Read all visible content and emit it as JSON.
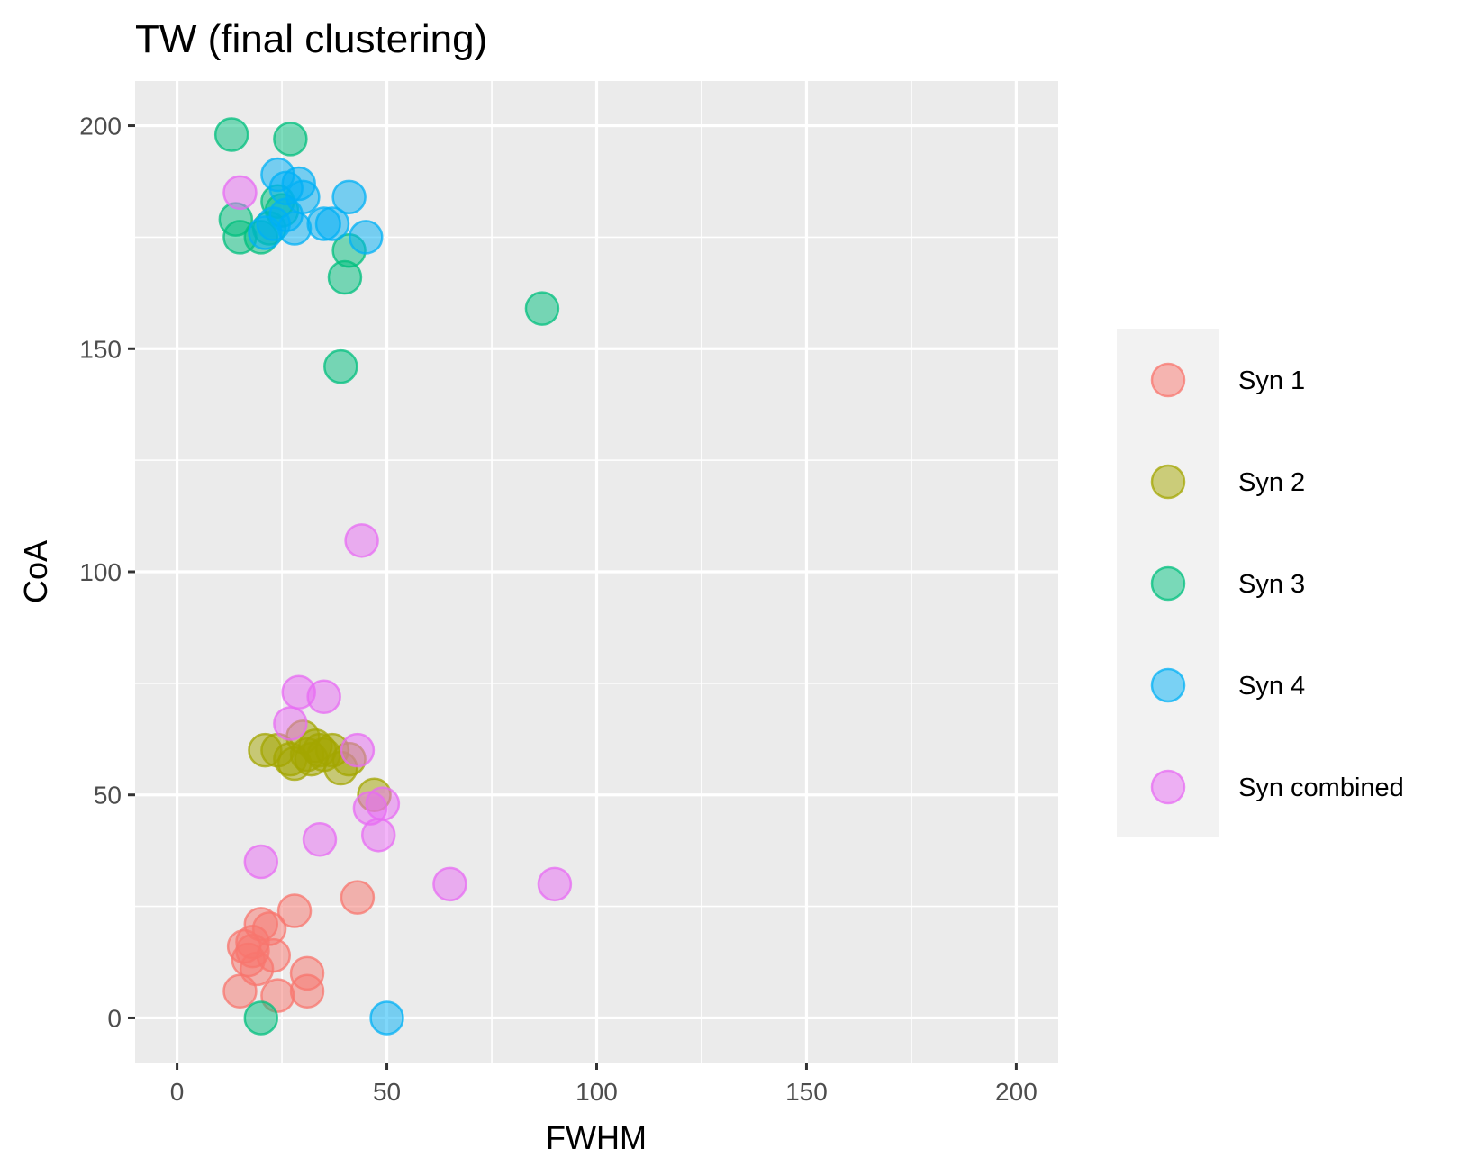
{
  "chart_data": {
    "type": "scatter",
    "title": "TW (final clustering)",
    "xlabel": "FWHM",
    "ylabel": "CoA",
    "xlim": [
      -10,
      210
    ],
    "ylim": [
      -10,
      210
    ],
    "xticks": [
      0,
      50,
      100,
      150,
      200
    ],
    "yticks": [
      0,
      50,
      100,
      150,
      200
    ],
    "grid": true,
    "legend_position": "right",
    "colors": {
      "panel_background": "#ebebeb",
      "grid": "#ffffff",
      "legend_background": "#f2f2f2"
    },
    "series": [
      {
        "name": "Syn 1",
        "color": "#F8766D",
        "points": [
          [
            15,
            6
          ],
          [
            16,
            16
          ],
          [
            18,
            15
          ],
          [
            17,
            13
          ],
          [
            19,
            11
          ],
          [
            20,
            21
          ],
          [
            22,
            20
          ],
          [
            23,
            14
          ],
          [
            24,
            5
          ],
          [
            28,
            24
          ],
          [
            31,
            10
          ],
          [
            31,
            6
          ],
          [
            43,
            27
          ],
          [
            18,
            17
          ]
        ]
      },
      {
        "name": "Syn 2",
        "color": "#A3A500",
        "points": [
          [
            21,
            60
          ],
          [
            24,
            60
          ],
          [
            27,
            58
          ],
          [
            28,
            57
          ],
          [
            30,
            63
          ],
          [
            31,
            59
          ],
          [
            32,
            58
          ],
          [
            33,
            61
          ],
          [
            34,
            60
          ],
          [
            35,
            59
          ],
          [
            37,
            60
          ],
          [
            39,
            56
          ],
          [
            41,
            58
          ],
          [
            47,
            50
          ]
        ]
      },
      {
        "name": "Syn 3",
        "color": "#00BF7D",
        "points": [
          [
            13,
            198
          ],
          [
            27,
            197
          ],
          [
            14,
            179
          ],
          [
            15,
            175
          ],
          [
            20,
            175
          ],
          [
            22,
            177
          ],
          [
            24,
            183
          ],
          [
            25,
            181
          ],
          [
            40,
            166
          ],
          [
            41,
            172
          ],
          [
            87,
            159
          ],
          [
            39,
            146
          ],
          [
            20,
            0
          ]
        ]
      },
      {
        "name": "Syn 4",
        "color": "#00B0F6",
        "points": [
          [
            24,
            189
          ],
          [
            26,
            186
          ],
          [
            29,
            187
          ],
          [
            30,
            184
          ],
          [
            26,
            180
          ],
          [
            23,
            178
          ],
          [
            21,
            176
          ],
          [
            28,
            177
          ],
          [
            35,
            178
          ],
          [
            37,
            178
          ],
          [
            41,
            184
          ],
          [
            45,
            175
          ],
          [
            50,
            0
          ]
        ]
      },
      {
        "name": "Syn combined",
        "color": "#E76BF3",
        "points": [
          [
            15,
            185
          ],
          [
            44,
            107
          ],
          [
            29,
            73
          ],
          [
            35,
            72
          ],
          [
            27,
            66
          ],
          [
            43,
            60
          ],
          [
            49,
            48
          ],
          [
            46,
            47
          ],
          [
            48,
            41
          ],
          [
            34,
            40
          ],
          [
            20,
            35
          ],
          [
            65,
            30
          ],
          [
            90,
            30
          ]
        ]
      }
    ]
  }
}
